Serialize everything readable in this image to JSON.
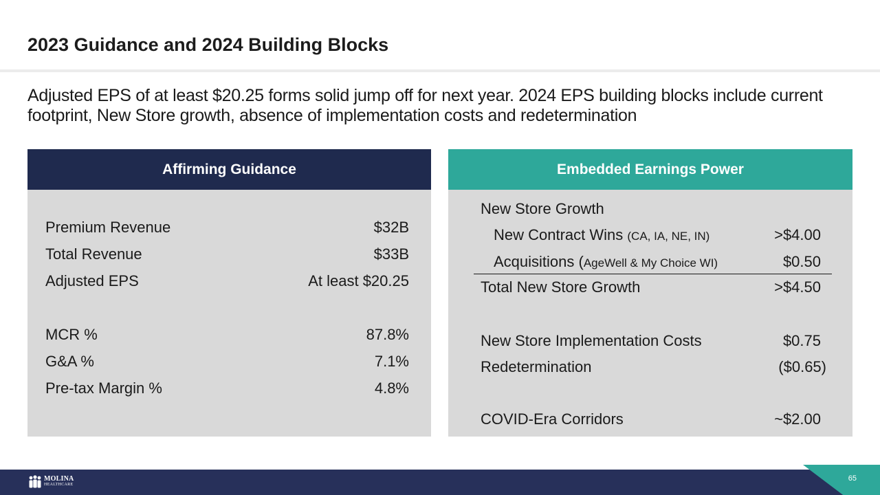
{
  "slide": {
    "title": "2023 Guidance and 2024 Building Blocks",
    "subtitle": "Adjusted EPS of at least $20.25 forms solid jump off for next year.  2024 EPS building blocks include current footprint, New Store growth, absence of implementation costs and redetermination",
    "page_number": "65"
  },
  "left_panel": {
    "header": "Affirming Guidance",
    "rows": [
      {
        "label": "Premium Revenue",
        "value": "$32B"
      },
      {
        "label": "Total Revenue",
        "value": "$33B"
      },
      {
        "label": "Adjusted EPS",
        "value": "At least $20.25"
      },
      {
        "label": "MCR %",
        "value": "87.8%"
      },
      {
        "label": "G&A %",
        "value": "7.1%"
      },
      {
        "label": "Pre-tax Margin %",
        "value": "4.8%"
      }
    ]
  },
  "right_panel": {
    "header": "Embedded Earnings Power",
    "section_label": "New Store Growth",
    "contract_wins": {
      "label": "New Contract Wins ",
      "detail": "(CA, IA, NE, IN)",
      "value": ">$4.00"
    },
    "acquisitions": {
      "label": "Acquisitions (",
      "detail": "AgeWell & My Choice WI)",
      "value": "$0.50"
    },
    "total_new_store": {
      "label": "Total New Store Growth",
      "value": ">$4.50"
    },
    "implementation": {
      "label": "New Store Implementation Costs",
      "value": "$0.75"
    },
    "redetermination": {
      "label": "Redetermination",
      "value": "($0.65)"
    },
    "covid": {
      "label": "COVID-Era Corridors",
      "value": "~$2.00"
    }
  },
  "footer": {
    "logo_line1": "MOLINA",
    "logo_line2": "HEALTHCARE",
    "colors": {
      "navy": "#27305a",
      "teal": "#2ea89a",
      "panel_navy": "#1f2a4e",
      "panel_bg": "#d9d9d9"
    }
  }
}
